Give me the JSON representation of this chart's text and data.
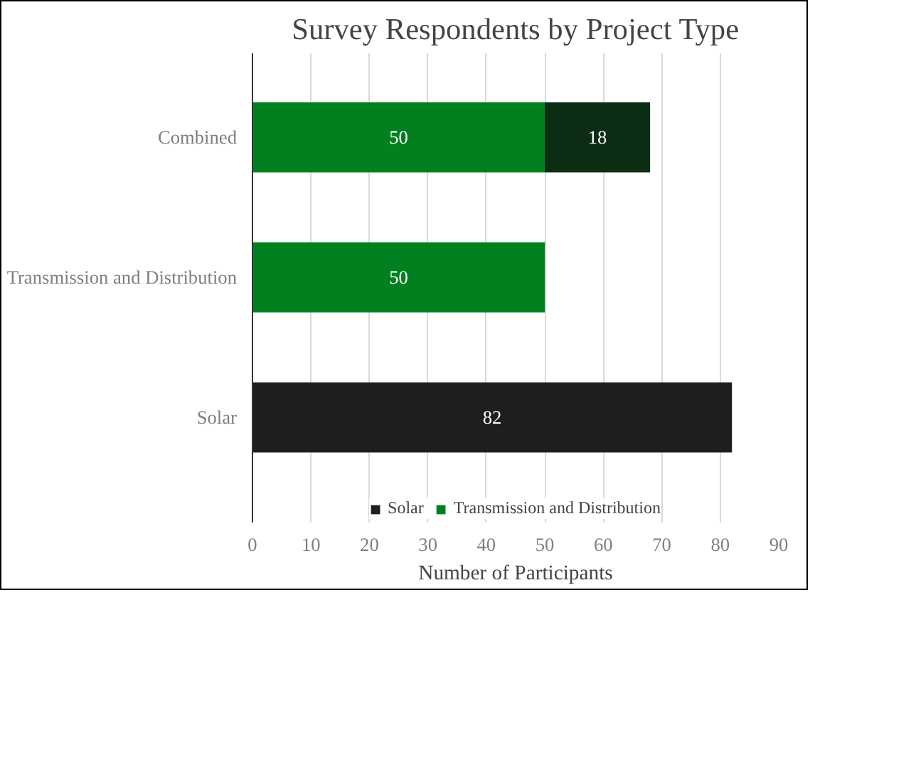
{
  "chart_data": {
    "type": "bar",
    "orientation": "horizontal",
    "stacked": true,
    "title": "Survey Respondents by Project Type",
    "xlabel": "Number of Participants",
    "categories": [
      "Combined",
      "Transmission and Distribution",
      "Solar"
    ],
    "series": [
      {
        "name": "Transmission and Distribution",
        "color": "#00801e",
        "values": [
          50,
          50,
          null
        ]
      },
      {
        "name": "Solar",
        "color": "#1e1e1e",
        "colors": [
          "#0d2c14",
          null,
          "#1e1e1e"
        ],
        "values": [
          18,
          null,
          82
        ]
      }
    ],
    "xlim": [
      0,
      90
    ],
    "xticks": [
      0,
      10,
      20,
      30,
      40,
      50,
      60,
      70,
      80,
      90
    ],
    "grid": "x",
    "legend": "bottom",
    "data_labels": true
  }
}
